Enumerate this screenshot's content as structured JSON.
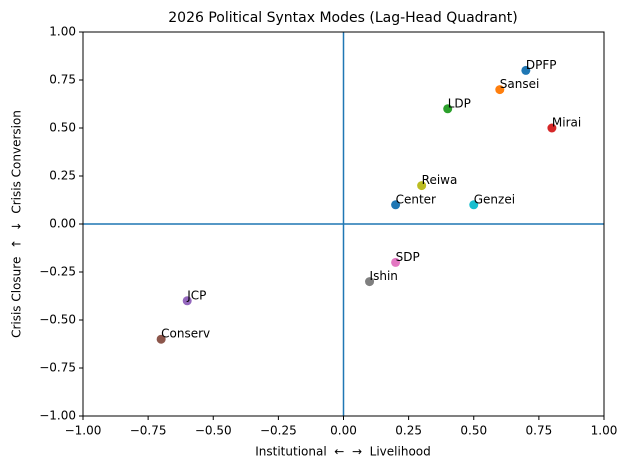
{
  "chart_data": {
    "type": "scatter",
    "title": "2026 Political Syntax Modes (Lag-Head Quadrant)",
    "x_label": "Institutional  ←  →  Livelihood",
    "y_label": "Crisis Closure  ↑  ↓  Crisis Conversion",
    "points": [
      {
        "label": "DPFP",
        "x": 0.7,
        "y": 0.8,
        "color": "#1f77b4"
      },
      {
        "label": "Sansei",
        "x": 0.6,
        "y": 0.7,
        "color": "#ff7f0e"
      },
      {
        "label": "LDP",
        "x": 0.4,
        "y": 0.6,
        "color": "#2ca02c"
      },
      {
        "label": "Mirai",
        "x": 0.8,
        "y": 0.5,
        "color": "#d62728"
      },
      {
        "label": "JCP",
        "x": -0.6,
        "y": -0.4,
        "color": "#9467bd"
      },
      {
        "label": "Conserv",
        "x": -0.7,
        "y": -0.6,
        "color": "#8c564b"
      },
      {
        "label": "SDP",
        "x": 0.2,
        "y": -0.2,
        "color": "#e377c2"
      },
      {
        "label": "Ishin",
        "x": 0.1,
        "y": -0.3,
        "color": "#7f7f7f"
      },
      {
        "label": "Reiwa",
        "x": 0.3,
        "y": 0.2,
        "color": "#bcbd22"
      },
      {
        "label": "Genzei",
        "x": 0.5,
        "y": 0.1,
        "color": "#17becf"
      },
      {
        "label": "Center",
        "x": 0.2,
        "y": 0.1,
        "color": "#1f77b4"
      }
    ],
    "hline": 0,
    "vline": 0,
    "reference_color": "#1f77b4",
    "xlim": [
      -1,
      1
    ],
    "ylim": [
      -1,
      1
    ],
    "xticks": [
      {
        "value": -1,
        "label": "−1.00"
      },
      {
        "value": -0.75,
        "label": "−0.75"
      },
      {
        "value": -0.5,
        "label": "−0.50"
      },
      {
        "value": -0.25,
        "label": "−0.25"
      },
      {
        "value": 0,
        "label": "0.00"
      },
      {
        "value": 0.25,
        "label": "0.25"
      },
      {
        "value": 0.5,
        "label": "0.50"
      },
      {
        "value": 0.75,
        "label": "0.75"
      },
      {
        "value": 1,
        "label": "1.00"
      }
    ],
    "yticks": [
      {
        "value": -1,
        "label": "−1.00"
      },
      {
        "value": -0.75,
        "label": "−0.75"
      },
      {
        "value": -0.5,
        "label": "−0.50"
      },
      {
        "value": -0.25,
        "label": "−0.25"
      },
      {
        "value": 0,
        "label": "0.00"
      },
      {
        "value": 0.25,
        "label": "0.25"
      },
      {
        "value": 0.5,
        "label": "0.50"
      },
      {
        "value": 0.75,
        "label": "0.75"
      },
      {
        "value": 1,
        "label": "1.00"
      }
    ]
  }
}
